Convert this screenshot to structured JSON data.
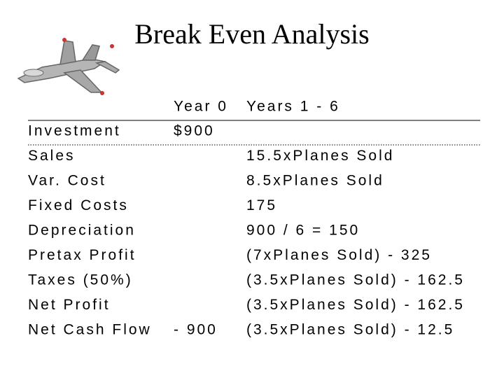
{
  "header": {
    "title": "Break Even Analysis"
  },
  "table": {
    "columns": [
      "Year 0",
      "Years 1 - 6"
    ],
    "rows": [
      {
        "label": "Investment",
        "year0": "$900"
      },
      {
        "label": "Sales",
        "years": "15.5xPlanes Sold"
      },
      {
        "label": "Var. Cost",
        "years": "8.5xPlanes Sold"
      },
      {
        "label": "Fixed Costs",
        "years": "175"
      },
      {
        "label": "Depreciation",
        "years": "900 / 6 = 150"
      },
      {
        "label": "Pretax Profit",
        "years": "(7xPlanes Sold) - 325"
      },
      {
        "label": "Taxes (50%)",
        "years": "(3.5xPlanes Sold) - 162.5"
      },
      {
        "label": "Net Profit",
        "years": "(3.5xPlanes Sold) - 162.5"
      },
      {
        "label": "Net Cash Flow",
        "year0": "- 900",
        "years": "(3.5xPlanes Sold) - 12.5"
      }
    ]
  }
}
